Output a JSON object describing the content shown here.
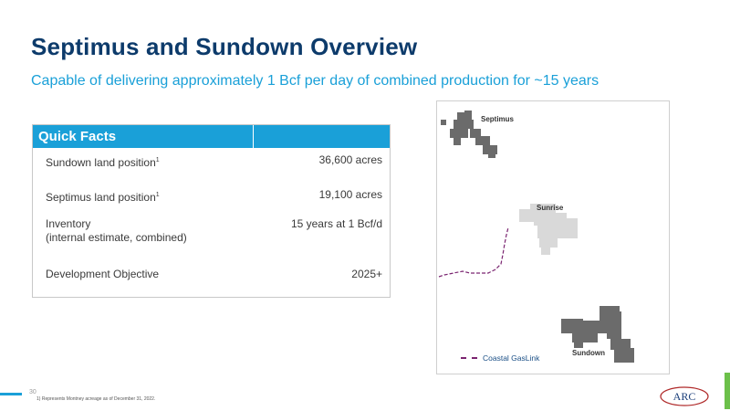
{
  "slide": {
    "title": "Septimus and Sundown Overview",
    "subtitle": "Capable of delivering approximately 1 Bcf per day of combined production for ~15 years",
    "page_number": "30",
    "footnote": "1)   Represents Montney acreage as of December 31, 2022."
  },
  "quick_facts": {
    "header": "Quick Facts",
    "rows": [
      {
        "label": "Sundown land position",
        "sup": "1",
        "value": "36,600 acres"
      },
      {
        "label": "Septimus land position",
        "sup": "1",
        "value": "19,100 acres"
      },
      {
        "label": "Inventory",
        "label2": "(internal estimate, combined)",
        "value": "15 years at 1 Bcf/d"
      },
      {
        "label": "Development Objective",
        "value": "2025+"
      }
    ]
  },
  "map": {
    "labels": {
      "septimus": "Septimus",
      "sunrise": "Sunrise",
      "sundown": "Sundown"
    },
    "legend": "Coastal GasLink",
    "colors": {
      "dark_acreage": "#6b6b6b",
      "light_acreage": "#d9d9d9",
      "pipeline": "#7a2470"
    }
  },
  "logo": {
    "text": "ARC"
  }
}
